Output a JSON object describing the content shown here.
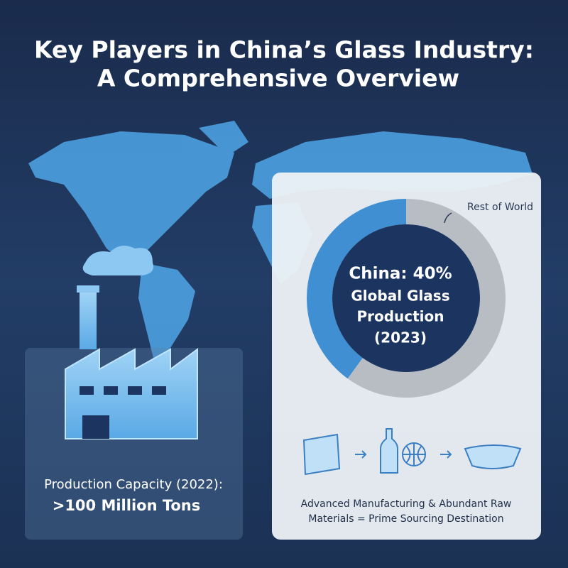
{
  "header": {
    "title_lines": [
      "Key Players in China’s Glass Industry:",
      "A Comprehensive Overview"
    ]
  },
  "capacity_card": {
    "label": "Production Capacity (2022):",
    "value": ">100 Million Tons"
  },
  "share_chart": {
    "type": "donut",
    "center_lines": [
      "China: 40%",
      "Global Glass",
      "Production",
      "(2023)"
    ],
    "slices": [
      {
        "value": 40,
        "color": "#3f8fd2"
      },
      {
        "name": "Rest of World",
        "value": 60,
        "color": "#b8bdc3"
      }
    ]
  },
  "footer_note": {
    "lines": [
      "Advanced Manufacturing & Abundant Raw",
      "Materials = Prime Sourcing Destination"
    ]
  }
}
